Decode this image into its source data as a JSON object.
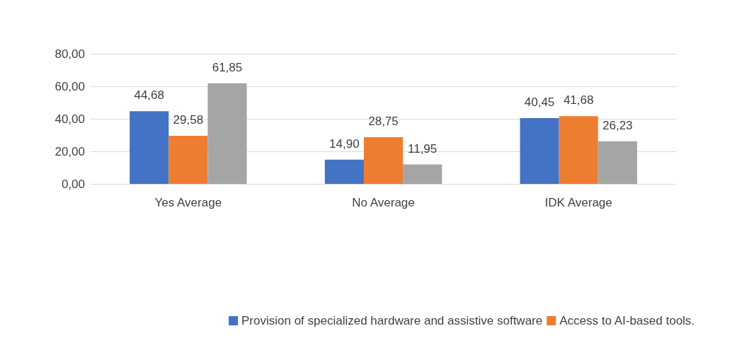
{
  "chart_data": {
    "type": "bar",
    "categories": [
      "Yes Average",
      "No Average",
      "IDK Average"
    ],
    "series": [
      {
        "name": "Provision of specialized hardware and assistive software",
        "color": "#4472c4",
        "values": [
          44.68,
          14.9,
          40.45
        ],
        "value_labels": [
          "44,68",
          "14,90",
          "40,45"
        ]
      },
      {
        "name": "Access to AI-based tools.",
        "color": "#ed7d31",
        "values": [
          29.58,
          28.75,
          41.68
        ],
        "value_labels": [
          "29,58",
          "28,75",
          "41,68"
        ]
      },
      {
        "color": "#a5a5a5",
        "values": [
          61.85,
          11.95,
          26.23
        ],
        "value_labels": [
          "61,85",
          "11,95",
          "26,23"
        ]
      }
    ],
    "ylim": [
      0,
      80
    ],
    "yticks": [
      {
        "value": 0,
        "label": "0,00"
      },
      {
        "value": 20,
        "label": "20,00"
      },
      {
        "value": 40,
        "label": "40,00"
      },
      {
        "value": 60,
        "label": "60,00"
      },
      {
        "value": 80,
        "label": "80,00"
      }
    ],
    "grid": "y",
    "legend": "bottom"
  }
}
